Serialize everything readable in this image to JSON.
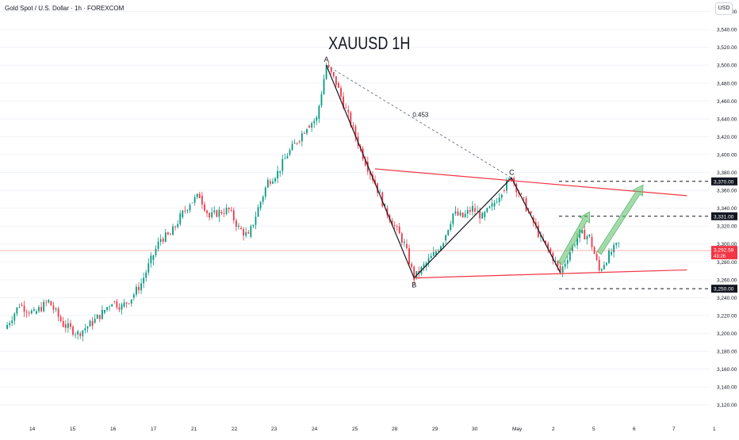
{
  "header": {
    "symbol": "Gold Spot / U.S. Dollar · 1h · FOREXCOM",
    "currency": "USD"
  },
  "chart_data": {
    "type": "candlestick",
    "title": "XAUUSD 1H",
    "ylim": [
      3110,
      3580
    ],
    "y_ticks": [
      "3,120.00",
      "3,140.00",
      "3,160.00",
      "3,180.00",
      "3,200.00",
      "3,220.00",
      "3,240.00",
      "3,260.00",
      "3,280.00",
      "3,300.00",
      "3,320.00",
      "3,340.00",
      "3,360.00",
      "3,380.00",
      "3,400.00",
      "3,420.00",
      "3,440.00",
      "3,460.00",
      "3,480.00",
      "3,500.00",
      "3,520.00",
      "3,540.00",
      "3,560.00"
    ],
    "y_tick_values": [
      3120,
      3140,
      3160,
      3180,
      3200,
      3220,
      3240,
      3260,
      3280,
      3300,
      3320,
      3340,
      3360,
      3380,
      3400,
      3420,
      3440,
      3460,
      3480,
      3500,
      3520,
      3540,
      3560
    ],
    "x_ticks": [
      "14",
      "15",
      "16",
      "17",
      "21",
      "22",
      "23",
      "24",
      "25",
      "28",
      "29",
      "30",
      "May",
      "2",
      "5",
      "6",
      "7",
      "1"
    ],
    "x_tick_index": [
      0,
      1,
      2,
      3,
      4,
      5,
      6,
      7,
      8,
      9,
      10,
      11,
      12,
      13,
      14,
      15,
      16,
      17
    ],
    "price_path": [
      [
        0,
        3205
      ],
      [
        3,
        3232
      ],
      [
        6,
        3222
      ],
      [
        9,
        3236
      ],
      [
        12,
        3210
      ],
      [
        15,
        3200
      ],
      [
        18,
        3212
      ],
      [
        20,
        3223
      ],
      [
        22,
        3236
      ],
      [
        24,
        3230
      ],
      [
        26,
        3240
      ],
      [
        28,
        3256
      ],
      [
        30,
        3282
      ],
      [
        32,
        3306
      ],
      [
        34,
        3310
      ],
      [
        36,
        3330
      ],
      [
        38,
        3346
      ],
      [
        40,
        3354
      ],
      [
        42,
        3330
      ],
      [
        44,
        3336
      ],
      [
        46,
        3338
      ],
      [
        48,
        3318
      ],
      [
        50,
        3308
      ],
      [
        52,
        3340
      ],
      [
        54,
        3370
      ],
      [
        56,
        3380
      ],
      [
        58,
        3400
      ],
      [
        60,
        3415
      ],
      [
        62,
        3432
      ],
      [
        64,
        3440
      ],
      [
        66,
        3500
      ],
      [
        68,
        3480
      ],
      [
        70,
        3450
      ],
      [
        72,
        3420
      ],
      [
        74,
        3392
      ],
      [
        76,
        3368
      ],
      [
        78,
        3340
      ],
      [
        80,
        3320
      ],
      [
        82,
        3300
      ],
      [
        84,
        3262
      ],
      [
        86,
        3275
      ],
      [
        88,
        3288
      ],
      [
        90,
        3304
      ],
      [
        92,
        3334
      ],
      [
        94,
        3330
      ],
      [
        96,
        3340
      ],
      [
        98,
        3330
      ],
      [
        100,
        3342
      ],
      [
        102,
        3360
      ],
      [
        104,
        3374
      ],
      [
        106,
        3352
      ],
      [
        108,
        3330
      ],
      [
        110,
        3306
      ],
      [
        112,
        3290
      ],
      [
        114,
        3268
      ],
      [
        116,
        3292
      ],
      [
        118,
        3312
      ],
      [
        120,
        3308
      ],
      [
        122,
        3270
      ],
      [
        124,
        3288
      ],
      [
        126,
        3300
      ]
    ],
    "x_range": [
      0,
      210
    ],
    "current_price": "3,292.59",
    "current_price_value": 3292.59,
    "countdown": "43:26",
    "price_levels": [
      {
        "label": "3,370.00",
        "value": 3370
      },
      {
        "label": "3,331.00",
        "value": 3331
      },
      {
        "label": "3,250.00",
        "value": 3250
      }
    ],
    "pattern_points": [
      {
        "label": "A",
        "x": 66,
        "y": 3500
      },
      {
        "label": "B",
        "x": 84,
        "y": 3262
      },
      {
        "label": "C",
        "x": 104,
        "y": 3374
      }
    ],
    "fib_ratio": "0.453",
    "channel": {
      "upper": [
        [
          76,
          3384
        ],
        [
          140,
          3354
        ]
      ],
      "lower": [
        [
          84,
          3262
        ],
        [
          140,
          3271
        ]
      ]
    },
    "colors": {
      "up": "#089981",
      "down": "#f23645",
      "pattern": "#131722",
      "channel": "#f23645",
      "projection": "#5cbb6a",
      "grid": "#f0f3fa"
    }
  }
}
